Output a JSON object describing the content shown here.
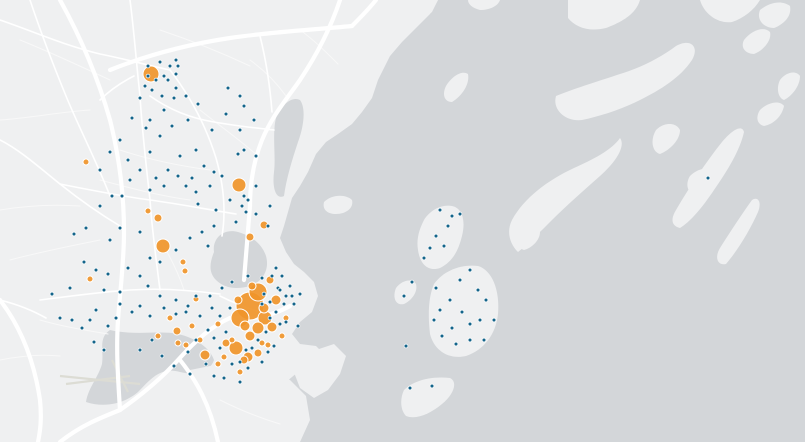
{
  "map": {
    "colors": {
      "water": "#d3d6d9",
      "land": "#eff0f1",
      "roads": "#ffffff",
      "point_blue": "#13648a",
      "point_orange": "#f0952a"
    },
    "markers": {
      "blue_count_visible": 207,
      "orange_count_visible": 47
    }
  }
}
